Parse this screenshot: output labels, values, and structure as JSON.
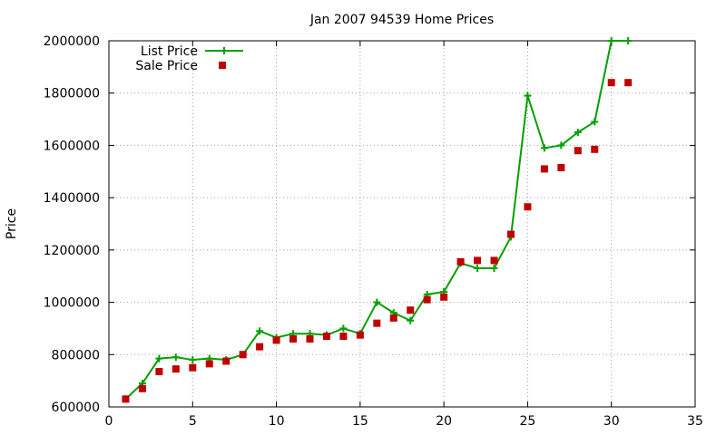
{
  "chart_data": {
    "type": "line",
    "title": "Jan 2007 94539 Home Prices",
    "xlabel": "",
    "ylabel": "Price",
    "xlim": [
      0,
      35
    ],
    "ylim": [
      600000,
      2000000
    ],
    "x_ticks": [
      0,
      5,
      10,
      15,
      20,
      25,
      30,
      35
    ],
    "y_ticks": [
      600000,
      800000,
      1000000,
      1200000,
      1400000,
      1600000,
      1800000,
      2000000
    ],
    "grid": true,
    "legend_position": "top-left",
    "series": [
      {
        "name": "List Price",
        "style": "line-points",
        "color": "#00a000",
        "x": [
          1,
          2,
          3,
          4,
          5,
          6,
          7,
          8,
          9,
          10,
          11,
          12,
          13,
          14,
          15,
          16,
          17,
          18,
          19,
          20,
          21,
          22,
          23,
          24,
          25,
          26,
          27,
          28,
          29,
          30,
          31
        ],
        "values": [
          630000,
          690000,
          785000,
          790000,
          780000,
          785000,
          780000,
          800000,
          890000,
          865000,
          880000,
          880000,
          875000,
          900000,
          880000,
          1000000,
          960000,
          930000,
          1030000,
          1040000,
          1150000,
          1130000,
          1130000,
          1250000,
          1790000,
          1590000,
          1600000,
          1650000,
          1690000,
          2000000,
          2000000
        ]
      },
      {
        "name": "Sale Price",
        "style": "points",
        "color": "#c00000",
        "x": [
          1,
          2,
          3,
          4,
          5,
          6,
          7,
          8,
          9,
          10,
          11,
          12,
          13,
          14,
          15,
          16,
          17,
          18,
          19,
          20,
          21,
          22,
          23,
          24,
          25,
          26,
          27,
          28,
          29,
          30,
          31
        ],
        "values": [
          630000,
          670000,
          735000,
          745000,
          750000,
          765000,
          775000,
          800000,
          830000,
          855000,
          860000,
          860000,
          870000,
          870000,
          875000,
          920000,
          940000,
          970000,
          1010000,
          1020000,
          1155000,
          1160000,
          1160000,
          1260000,
          1365000,
          1510000,
          1515000,
          1580000,
          1585000,
          1840000,
          1840000
        ]
      }
    ]
  }
}
